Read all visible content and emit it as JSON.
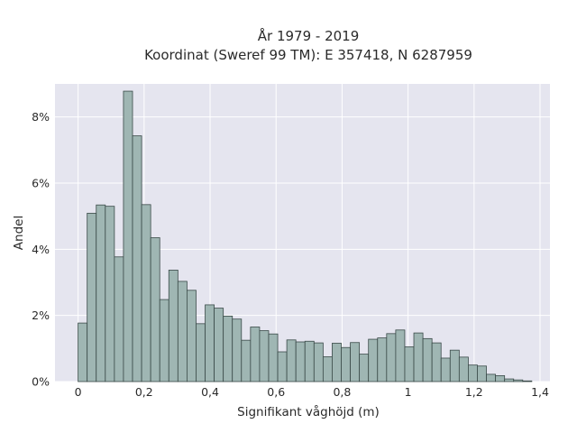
{
  "chart_data": {
    "type": "bar",
    "title": "År 1979 - 2019",
    "subtitle": "Koordinat (Sweref 99 TM): E 357418, N 6287959",
    "xlabel": "Signifikant våghöjd (m)",
    "ylabel": "Andel",
    "xlim": [
      -0.07,
      1.43
    ],
    "ylim": [
      0,
      9.0
    ],
    "x_ticks": [
      0,
      0.2,
      0.4,
      0.6,
      0.8,
      1.0,
      1.2,
      1.4
    ],
    "x_tick_labels": [
      "0",
      "0,2",
      "0,4",
      "0,6",
      "0,8",
      "1",
      "1,2",
      "1,4"
    ],
    "y_ticks": [
      0,
      2,
      4,
      6,
      8
    ],
    "y_tick_labels": [
      "0%",
      "2%",
      "4%",
      "6%",
      "8%"
    ],
    "bin_width": 0.0275,
    "bin_start": 0,
    "values": [
      1.77,
      5.09,
      5.34,
      5.3,
      3.77,
      8.78,
      7.43,
      5.35,
      4.35,
      2.48,
      3.37,
      3.03,
      2.76,
      1.75,
      2.32,
      2.22,
      1.98,
      1.89,
      1.25,
      1.65,
      1.54,
      1.44,
      0.9,
      1.26,
      1.2,
      1.22,
      1.17,
      0.75,
      1.16,
      1.03,
      1.18,
      0.83,
      1.28,
      1.32,
      1.45,
      1.56,
      1.05,
      1.47,
      1.3,
      1.17,
      0.71,
      0.95,
      0.74,
      0.5,
      0.47,
      0.22,
      0.18,
      0.08,
      0.05,
      0.02
    ],
    "grid": true,
    "colors": {
      "background": "#e5e5ef",
      "bar_fill": "#9fb6b3",
      "bar_stroke": "#3a4a48",
      "grid": "#ffffff"
    }
  }
}
